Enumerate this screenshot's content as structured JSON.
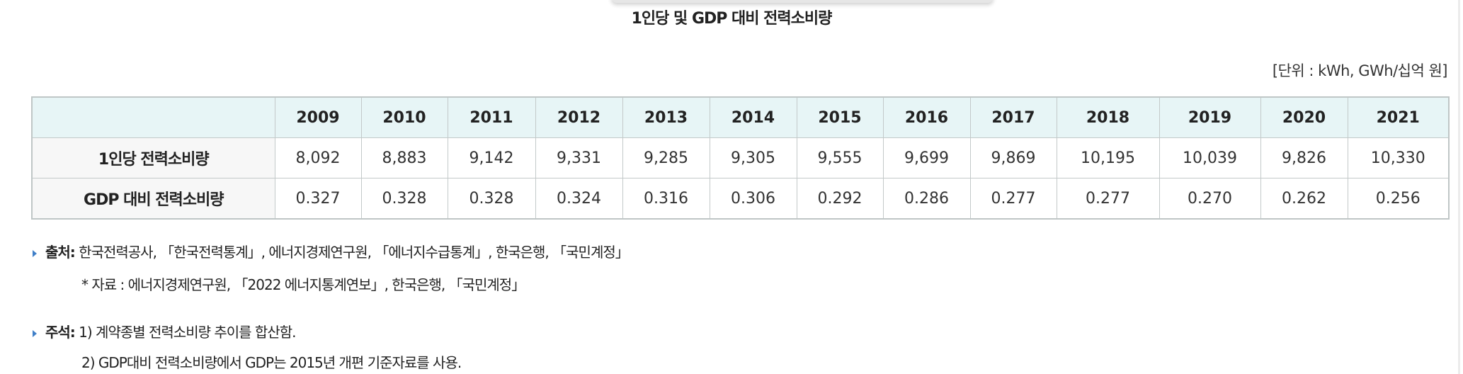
{
  "title": "1인당 및 GDP 대비 전력소비량",
  "unit": "[단위 : kWh, GWh/십억 원]",
  "table": {
    "columns": [
      "2009",
      "2010",
      "2011",
      "2012",
      "2013",
      "2014",
      "2015",
      "2016",
      "2017",
      "2018",
      "2019",
      "2020",
      "2021"
    ],
    "rows": [
      {
        "label": "1인당 전력소비량",
        "values": [
          "8,092",
          "8,883",
          "9,142",
          "9,331",
          "9,285",
          "9,305",
          "9,555",
          "9,699",
          "9,869",
          "10,195",
          "10,039",
          "9,826",
          "10,330"
        ]
      },
      {
        "label": "GDP 대비 전력소비량",
        "values": [
          "0.327",
          "0.328",
          "0.328",
          "0.324",
          "0.316",
          "0.306",
          "0.292",
          "0.286",
          "0.277",
          "0.277",
          "0.270",
          "0.262",
          "0.256"
        ]
      }
    ]
  },
  "notes": {
    "source_label": "출처:",
    "source_text": " 한국전력공사, 「한국전력통계」, 에너지경제연구원, 「에너지수급통계」, 한국은행, 「국민계정」",
    "source_sub": "* 자료 : 에너지경제연구원, 「2022 에너지통계연보」, 한국은행, 「국민계정」",
    "remark_label": "주석:",
    "remark_1": " 1) 계약종별 전력소비량 추이를 합산함.",
    "remark_2": "2) GDP대비 전력소비량에서 GDP는 2015년 개편 기준자료를 사용."
  },
  "colors": {
    "header_bg": "#e7f5f6",
    "label_bg": "#f7f7f7",
    "bullet": "#3f7fc8"
  }
}
